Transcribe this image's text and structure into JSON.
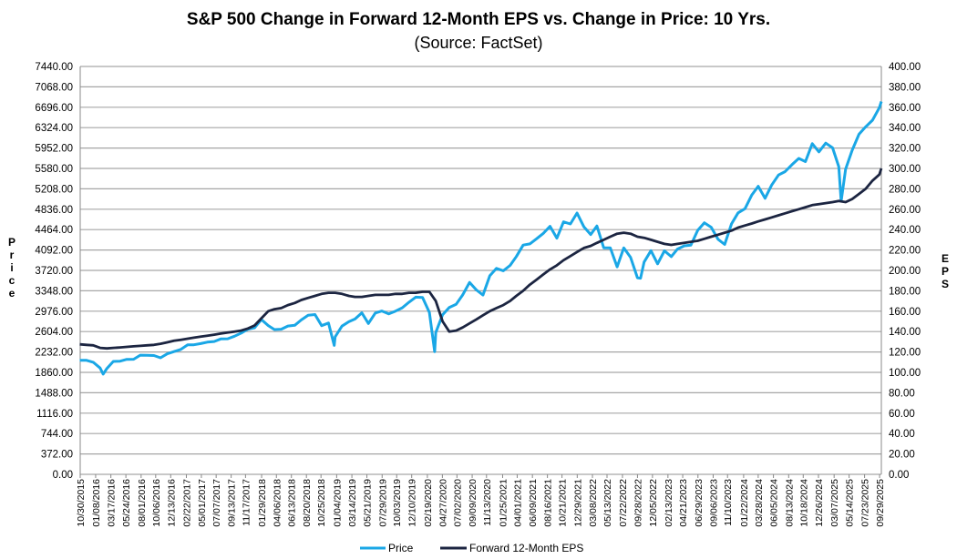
{
  "chart_data": {
    "type": "line",
    "title": "S&P 500 Change in Forward 12-Month EPS vs. Change in Price: 10 Yrs.",
    "subtitle": "(Source: FactSet)",
    "ylabel": "Price",
    "y2label": "EPS",
    "ylim": [
      0,
      7440
    ],
    "y2lim": [
      0,
      400
    ],
    "xlim": [
      "2015-10-30",
      "2025-10-07"
    ],
    "grid": true,
    "legend_position": "bottom",
    "colors": {
      "price": "#1aa7e6",
      "eps": "#1c2541",
      "grid": "#a6a6a6"
    },
    "y_ticks": [
      "0.00",
      "372.00",
      "744.00",
      "1116.00",
      "1488.00",
      "1860.00",
      "2232.00",
      "2604.00",
      "2976.00",
      "3348.00",
      "3720.00",
      "4092.00",
      "4464.00",
      "4836.00",
      "5208.00",
      "5580.00",
      "5952.00",
      "6324.00",
      "6696.00",
      "7068.00",
      "7440.00"
    ],
    "y2_ticks": [
      "0.00",
      "20.00",
      "40.00",
      "60.00",
      "80.00",
      "100.00",
      "120.00",
      "140.00",
      "160.00",
      "180.00",
      "200.00",
      "220.00",
      "240.00",
      "260.00",
      "280.00",
      "300.00",
      "320.00",
      "340.00",
      "360.00",
      "380.00",
      "400.00"
    ],
    "x_ticks": [
      "10/30/2015",
      "01/08/2016",
      "03/17/2016",
      "05/24/2016",
      "08/01/2016",
      "10/06/2016",
      "12/13/2016",
      "02/22/2017",
      "05/01/2017",
      "07/07/2017",
      "09/13/2017",
      "11/17/2017",
      "01/29/2018",
      "04/06/2018",
      "06/13/2018",
      "08/20/2018",
      "10/25/2018",
      "01/04/2019",
      "03/14/2019",
      "05/21/2019",
      "07/29/2019",
      "10/03/2019",
      "12/10/2019",
      "02/19/2020",
      "04/27/2020",
      "07/02/2020",
      "09/09/2020",
      "11/13/2020",
      "01/25/2021",
      "04/01/2021",
      "06/09/2021",
      "08/16/2021",
      "10/21/2021",
      "12/29/2021",
      "03/08/2022",
      "05/13/2022",
      "07/22/2022",
      "09/28/2022",
      "12/05/2022",
      "02/13/2023",
      "04/21/2023",
      "06/29/2023",
      "09/06/2023",
      "11/10/2023",
      "01/22/2024",
      "03/28/2024",
      "06/05/2024",
      "08/13/2024",
      "10/18/2024",
      "12/26/2024",
      "03/07/2025",
      "05/14/2025",
      "07/23/2025",
      "09/29/2025"
    ],
    "months": [
      "2015-10",
      "2015-11",
      "2015-12",
      "2016-01",
      "2016-02",
      "2016-03",
      "2016-04",
      "2016-05",
      "2016-06",
      "2016-07",
      "2016-08",
      "2016-09",
      "2016-10",
      "2016-11",
      "2016-12",
      "2017-01",
      "2017-02",
      "2017-03",
      "2017-04",
      "2017-05",
      "2017-06",
      "2017-07",
      "2017-08",
      "2017-09",
      "2017-10",
      "2017-11",
      "2017-12",
      "2018-01",
      "2018-02",
      "2018-03",
      "2018-04",
      "2018-05",
      "2018-06",
      "2018-07",
      "2018-08",
      "2018-09",
      "2018-10",
      "2018-11",
      "2018-12",
      "2019-01",
      "2019-02",
      "2019-03",
      "2019-04",
      "2019-05",
      "2019-06",
      "2019-07",
      "2019-08",
      "2019-09",
      "2019-10",
      "2019-11",
      "2019-12",
      "2020-01",
      "2020-02",
      "2020-03",
      "2020-04",
      "2020-05",
      "2020-06",
      "2020-07",
      "2020-08",
      "2020-09",
      "2020-10",
      "2020-11",
      "2020-12",
      "2021-01",
      "2021-02",
      "2021-03",
      "2021-04",
      "2021-05",
      "2021-06",
      "2021-07",
      "2021-08",
      "2021-09",
      "2021-10",
      "2021-11",
      "2021-12",
      "2022-01",
      "2022-02",
      "2022-03",
      "2022-04",
      "2022-05",
      "2022-06",
      "2022-07",
      "2022-08",
      "2022-09",
      "2022-10",
      "2022-11",
      "2022-12",
      "2023-01",
      "2023-02",
      "2023-03",
      "2023-04",
      "2023-05",
      "2023-06",
      "2023-07",
      "2023-08",
      "2023-09",
      "2023-10",
      "2023-11",
      "2023-12",
      "2024-01",
      "2024-02",
      "2024-03",
      "2024-04",
      "2024-05",
      "2024-06",
      "2024-07",
      "2024-08",
      "2024-09",
      "2024-10",
      "2024-11",
      "2024-12",
      "2025-01",
      "2025-02",
      "2025-03",
      "2025-04",
      "2025-05",
      "2025-06",
      "2025-07",
      "2025-08",
      "2025-09",
      "2025-10"
    ],
    "series": [
      {
        "name": "Price",
        "axis": "left",
        "values": [
          2079,
          2080,
          2044,
          1940,
          1932,
          2060,
          2065,
          2097,
          2099,
          2174,
          2171,
          2168,
          2126,
          2199,
          2239,
          2279,
          2364,
          2363,
          2384,
          2412,
          2423,
          2470,
          2472,
          2519,
          2575,
          2648,
          2674,
          2824,
          2714,
          2641,
          2648,
          2705,
          2718,
          2816,
          2902,
          2914,
          2712,
          2760,
          2507,
          2704,
          2784,
          2834,
          2946,
          2752,
          2942,
          2980,
          2926,
          2977,
          3038,
          3141,
          3231,
          3226,
          2954,
          2585,
          2912,
          3044,
          3100,
          3271,
          3500,
          3363,
          3270,
          3622,
          3756,
          3714,
          3811,
          3973,
          4181,
          4204,
          4298,
          4395,
          4523,
          4308,
          4605,
          4567,
          4766,
          4516,
          4374,
          4530,
          4132,
          4132,
          3785,
          4130,
          3955,
          3586,
          3872,
          4080,
          3840,
          4077,
          3970,
          4109,
          4169,
          4180,
          4450,
          4589,
          4508,
          4288,
          4194,
          4568,
          4770,
          4846,
          5096,
          5254,
          5036,
          5278,
          5460,
          5522,
          5648,
          5762,
          5705,
          6032,
          5882,
          6041,
          5955,
          5612,
          5569,
          5912,
          6205,
          6339,
          6460,
          6688,
          6800
        ],
        "lows": [
          [
            "2016-02-11",
            1829
          ],
          [
            "2018-12-24",
            2351
          ],
          [
            "2020-03-23",
            2237
          ],
          [
            "2022-10-12",
            3577
          ],
          [
            "2025-04-08",
            4982
          ]
        ]
      },
      {
        "name": "Forward 12-Month EPS",
        "axis": "right",
        "values": [
          127.5,
          127,
          126.5,
          124,
          123.5,
          124,
          124.5,
          125,
          125.5,
          126,
          126.5,
          127,
          128,
          129.5,
          131,
          132,
          133,
          134,
          135,
          136,
          137,
          138,
          139,
          140,
          141,
          143,
          146,
          153,
          160,
          162,
          163,
          166,
          168,
          171,
          173,
          175,
          177,
          178,
          178,
          177,
          175,
          174,
          174,
          175,
          176,
          176,
          176,
          177,
          177,
          178,
          178,
          179,
          179,
          170,
          150,
          140,
          141,
          144,
          148,
          152,
          156,
          160,
          163,
          166,
          170,
          175,
          180,
          186,
          191,
          196,
          201,
          205,
          210,
          214,
          218,
          222,
          224,
          227,
          230,
          233,
          236,
          237,
          236,
          233,
          232,
          230,
          228,
          226,
          225,
          226,
          227,
          228,
          229,
          231,
          233,
          235,
          237,
          239,
          242,
          244,
          246,
          248,
          250,
          252,
          254,
          256,
          258,
          260,
          262,
          264,
          265,
          266,
          267,
          268,
          267,
          270,
          275,
          280,
          288,
          294,
          300
        ]
      }
    ]
  }
}
